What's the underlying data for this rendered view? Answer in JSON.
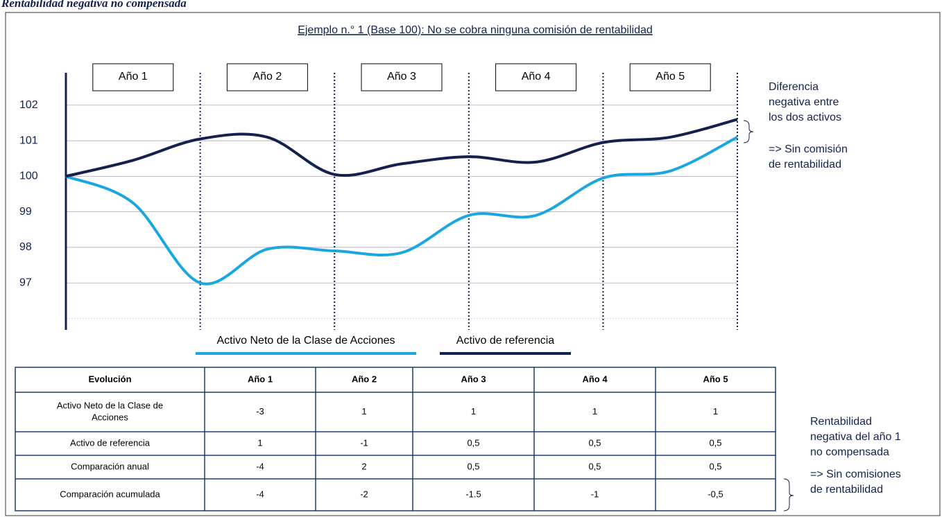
{
  "heading": "Rentabilidad negativa no compensada",
  "chart_data": {
    "type": "line",
    "title": "Ejemplo n.° 1 (Base 100): No se cobra ninguna comisión de rentabilidad",
    "year_labels": [
      "Año 1",
      "Año 2",
      "Año 3",
      "Año 4",
      "Año 5"
    ],
    "x": [
      0,
      0.5,
      1,
      1.5,
      2,
      2.5,
      3,
      3.5,
      4,
      4.5,
      5
    ],
    "xlim": [
      0,
      5
    ],
    "ylim": [
      96,
      103
    ],
    "yticks": [
      97,
      98,
      99,
      100,
      101,
      102
    ],
    "grid": true,
    "series": [
      {
        "name": "Activo Neto de la Clase de Acciones",
        "color": "#1aa7e1",
        "values": [
          100,
          99.25,
          97,
          97.95,
          97.9,
          97.85,
          98.9,
          98.9,
          99.95,
          100.15,
          101.1
        ]
      },
      {
        "name": "Activo de referencia",
        "color": "#14214f",
        "values": [
          100,
          100.45,
          101.05,
          101.1,
          100.05,
          100.35,
          100.55,
          100.4,
          100.95,
          101.1,
          101.6
        ]
      }
    ],
    "annotations": [
      [
        "Diferencia",
        "negativa entre",
        "los dos activos"
      ],
      [
        "=> Sin comisión",
        "de rentabilidad"
      ]
    ]
  },
  "table": {
    "header": [
      "Evolución",
      "Año 1",
      "Año 2",
      "Año 3",
      "Año 4",
      "Año 5"
    ],
    "rows": [
      [
        [
          "Activo Neto de la Clase de",
          "Acciones"
        ],
        "-3",
        "1",
        "1",
        "1",
        "1"
      ],
      [
        "Activo de referencia",
        "1",
        "-1",
        "0,5",
        "0,5",
        "0,5"
      ],
      [
        "Comparación anual",
        "-4",
        "2",
        "0,5",
        "0,5",
        "0,5"
      ],
      [
        "Comparación acumulada",
        "-4",
        "-2",
        "-1.5",
        "-1",
        "-0,5"
      ]
    ],
    "annotations": [
      [
        "Rentabilidad",
        "negativa del año 1",
        "no compensada"
      ],
      [
        "=> Sin comisiones",
        "de rentabilidad"
      ]
    ]
  }
}
